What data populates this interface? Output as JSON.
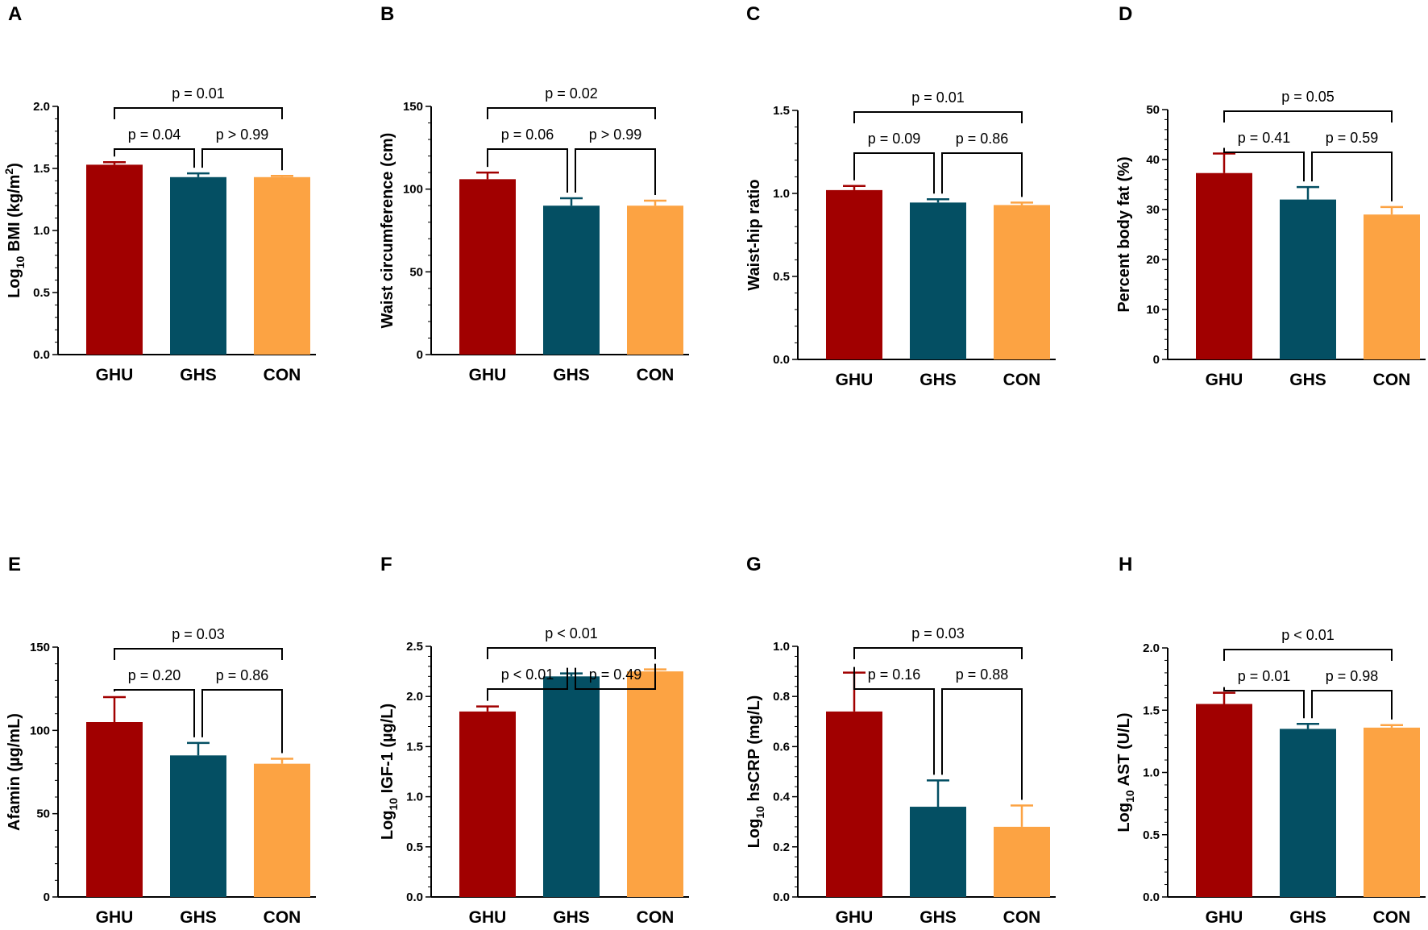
{
  "figure": {
    "panels": [
      "A",
      "B",
      "C",
      "D",
      "E",
      "F",
      "G",
      "H"
    ]
  },
  "colors": {
    "GHU": "#a10000",
    "GHS": "#044f63",
    "CON": "#fca343"
  },
  "chart_data": [
    {
      "panel": "A",
      "type": "bar",
      "categories": [
        "GHU",
        "GHS",
        "CON"
      ],
      "values": [
        1.53,
        1.43,
        1.43
      ],
      "errors": [
        0.02,
        0.03,
        0.01
      ],
      "ylabel_parts": {
        "pre": "Log",
        "sub": "10",
        "mid": " BMI (kg/m",
        "sup": "2",
        "post": ")"
      },
      "ylim": [
        0,
        2.0
      ],
      "ticks": [
        "0.0",
        "0.5",
        "1.0",
        "1.5",
        "2.0"
      ],
      "tick_values": [
        0,
        0.5,
        1.0,
        1.5,
        2.0
      ],
      "brackets": [
        {
          "from": 0,
          "to": 1,
          "label": "p = 0.04",
          "level": 1
        },
        {
          "from": 1,
          "to": 2,
          "label": "p > 0.99",
          "level": 1
        },
        {
          "from": 0,
          "to": 2,
          "label": "p = 0.01",
          "level": 2
        }
      ]
    },
    {
      "panel": "B",
      "type": "bar",
      "categories": [
        "GHU",
        "GHS",
        "CON"
      ],
      "values": [
        106,
        90,
        90
      ],
      "errors": [
        4,
        4.5,
        3
      ],
      "ylabel_parts": {
        "pre": "Waist circumference (cm)",
        "sub": "",
        "mid": "",
        "sup": "",
        "post": ""
      },
      "ylim": [
        0,
        150
      ],
      "ticks": [
        "0",
        "50",
        "100",
        "150"
      ],
      "tick_values": [
        0,
        50,
        100,
        150
      ],
      "brackets": [
        {
          "from": 0,
          "to": 1,
          "label": "p = 0.06",
          "level": 1
        },
        {
          "from": 1,
          "to": 2,
          "label": "p > 0.99",
          "level": 1
        },
        {
          "from": 0,
          "to": 2,
          "label": "p = 0.02",
          "level": 2
        }
      ]
    },
    {
      "panel": "C",
      "type": "bar",
      "categories": [
        "GHU",
        "GHS",
        "CON"
      ],
      "values": [
        1.02,
        0.945,
        0.93
      ],
      "errors": [
        0.025,
        0.02,
        0.015
      ],
      "ylabel_parts": {
        "pre": "Waist-hip ratio",
        "sub": "",
        "mid": "",
        "sup": "",
        "post": ""
      },
      "ylim": [
        0,
        1.5
      ],
      "ticks": [
        "0.0",
        "0.5",
        "1.0",
        "1.5"
      ],
      "tick_values": [
        0,
        0.5,
        1.0,
        1.5
      ],
      "brackets": [
        {
          "from": 0,
          "to": 1,
          "label": "p = 0.09",
          "level": 1
        },
        {
          "from": 1,
          "to": 2,
          "label": "p = 0.86",
          "level": 1
        },
        {
          "from": 0,
          "to": 2,
          "label": "p = 0.01",
          "level": 2
        }
      ]
    },
    {
      "panel": "D",
      "type": "bar",
      "categories": [
        "GHU",
        "GHS",
        "CON"
      ],
      "values": [
        37.3,
        32,
        29
      ],
      "errors": [
        3.9,
        2.5,
        1.5
      ],
      "ylabel_parts": {
        "pre": "Percent body fat (%)",
        "sub": "",
        "mid": "",
        "sup": "",
        "post": ""
      },
      "ylim": [
        0,
        50
      ],
      "ticks": [
        "0",
        "10",
        "20",
        "30",
        "40",
        "50"
      ],
      "tick_values": [
        0,
        10,
        20,
        30,
        40,
        50
      ],
      "brackets": [
        {
          "from": 0,
          "to": 1,
          "label": "p = 0.41",
          "level": 1
        },
        {
          "from": 1,
          "to": 2,
          "label": "p = 0.59",
          "level": 1
        },
        {
          "from": 0,
          "to": 2,
          "label": "p = 0.05",
          "level": 2
        }
      ]
    },
    {
      "panel": "E",
      "type": "bar",
      "categories": [
        "GHU",
        "GHS",
        "CON"
      ],
      "values": [
        105,
        85,
        80
      ],
      "errors": [
        15,
        7.5,
        3
      ],
      "ylabel_parts": {
        "pre": "Afamin (µg/mL)",
        "sub": "",
        "mid": "",
        "sup": "",
        "post": ""
      },
      "ylim": [
        0,
        150
      ],
      "ticks": [
        "0",
        "50",
        "100",
        "150"
      ],
      "tick_values": [
        0,
        50,
        100,
        150
      ],
      "brackets": [
        {
          "from": 0,
          "to": 1,
          "label": "p = 0.20",
          "level": 1
        },
        {
          "from": 1,
          "to": 2,
          "label": "p = 0.86",
          "level": 1
        },
        {
          "from": 0,
          "to": 2,
          "label": "p = 0.03",
          "level": 2
        }
      ]
    },
    {
      "panel": "F",
      "type": "bar",
      "categories": [
        "GHU",
        "GHS",
        "CON"
      ],
      "values": [
        1.85,
        2.2,
        2.25
      ],
      "errors": [
        0.05,
        0.03,
        0.02
      ],
      "ylabel_parts": {
        "pre": "Log",
        "sub": "10",
        "mid": " IGF-1 (µg/L)",
        "sup": "",
        "post": ""
      },
      "ylim": [
        0,
        2.5
      ],
      "ticks": [
        "0.0",
        "0.5",
        "1.0",
        "1.5",
        "2.0",
        "2.5"
      ],
      "tick_values": [
        0,
        0.5,
        1.0,
        1.5,
        2.0,
        2.5
      ],
      "brackets": [
        {
          "from": 0,
          "to": 1,
          "label": "p < 0.01",
          "level": 1
        },
        {
          "from": 1,
          "to": 2,
          "label": "p = 0.49",
          "level": 1
        },
        {
          "from": 0,
          "to": 2,
          "label": "p < 0.01",
          "level": 2
        }
      ]
    },
    {
      "panel": "G",
      "type": "bar",
      "categories": [
        "GHU",
        "GHS",
        "CON"
      ],
      "values": [
        0.74,
        0.36,
        0.28
      ],
      "errors": [
        0.155,
        0.105,
        0.085
      ],
      "ylabel_parts": {
        "pre": "Log",
        "sub": "10",
        "mid": " hsCRP (mg/L)",
        "sup": "",
        "post": ""
      },
      "ylim": [
        0,
        1.0
      ],
      "ticks": [
        "0.0",
        "0.2",
        "0.4",
        "0.6",
        "0.8",
        "1.0"
      ],
      "tick_values": [
        0,
        0.2,
        0.4,
        0.6,
        0.8,
        1.0
      ],
      "brackets": [
        {
          "from": 0,
          "to": 1,
          "label": "p = 0.16",
          "level": 1
        },
        {
          "from": 1,
          "to": 2,
          "label": "p = 0.88",
          "level": 1
        },
        {
          "from": 0,
          "to": 2,
          "label": "p = 0.03",
          "level": 2
        }
      ]
    },
    {
      "panel": "H",
      "type": "bar",
      "categories": [
        "GHU",
        "GHS",
        "CON"
      ],
      "values": [
        1.55,
        1.35,
        1.36
      ],
      "errors": [
        0.09,
        0.04,
        0.02
      ],
      "ylabel_parts": {
        "pre": "Log",
        "sub": "10",
        "mid": " AST (U/L)",
        "sup": "",
        "post": ""
      },
      "ylim": [
        0,
        2.0
      ],
      "ticks": [
        "0.0",
        "0.5",
        "1.0",
        "1.5",
        "2.0"
      ],
      "tick_values": [
        0,
        0.5,
        1.0,
        1.5,
        2.0
      ],
      "brackets": [
        {
          "from": 0,
          "to": 1,
          "label": "p = 0.01",
          "level": 1
        },
        {
          "from": 1,
          "to": 2,
          "label": "p = 0.98",
          "level": 1
        },
        {
          "from": 0,
          "to": 2,
          "label": "p < 0.01",
          "level": 2
        }
      ]
    }
  ]
}
